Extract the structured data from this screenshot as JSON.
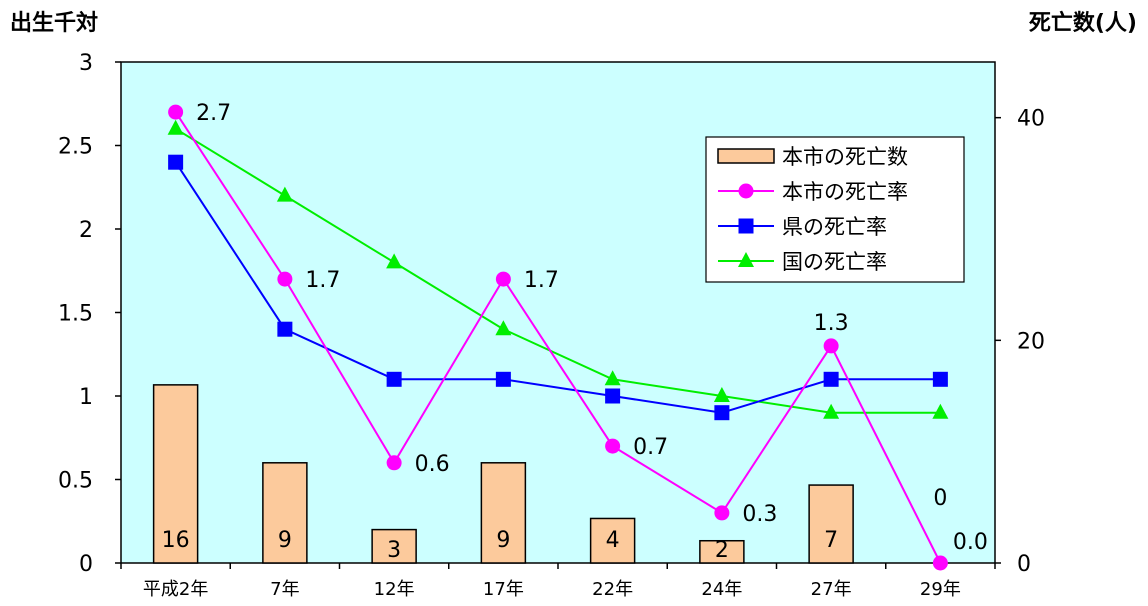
{
  "chart_data": {
    "type": "bar+line",
    "left_axis_title": "出生千対",
    "right_axis_title": "死亡数(人)",
    "categories": [
      "平成2年",
      "7年",
      "12年",
      "17年",
      "22年",
      "24年",
      "27年",
      "29年"
    ],
    "left_axis": {
      "ylim": [
        0,
        3
      ],
      "ticks": [
        "0",
        "0.5",
        "1",
        "1.5",
        "2",
        "2.5",
        "3"
      ]
    },
    "right_axis": {
      "ylim": [
        0,
        45
      ],
      "ticks": [
        "0",
        "20",
        "40"
      ]
    },
    "bars": {
      "name": "本市の死亡数",
      "axis": "right",
      "color": "#FCCA9C",
      "values": [
        16,
        9,
        3,
        9,
        4,
        2,
        7,
        0
      ],
      "labels": [
        "16",
        "9",
        "3",
        "9",
        "4",
        "2",
        "7",
        "0"
      ]
    },
    "series": [
      {
        "name": "本市の死亡率",
        "axis": "left",
        "color": "#FF00FF",
        "marker": "circle",
        "values": [
          2.7,
          1.7,
          0.6,
          1.7,
          0.7,
          0.3,
          1.3,
          0.0
        ],
        "labels": [
          "2.7",
          "1.7",
          "0.6",
          "1.7",
          "0.7",
          "0.3",
          "1.3",
          "0.0"
        ]
      },
      {
        "name": "県の死亡率",
        "axis": "left",
        "color": "#0000FF",
        "marker": "square",
        "values": [
          2.4,
          1.4,
          1.1,
          1.1,
          1.0,
          0.9,
          1.1,
          1.1
        ]
      },
      {
        "name": "国の死亡率",
        "axis": "left",
        "color": "#00EE00",
        "marker": "triangle",
        "values": [
          2.6,
          2.2,
          1.8,
          1.4,
          1.1,
          1.0,
          0.9,
          0.9
        ]
      }
    ],
    "plot_background": "#CCFFFF",
    "grid": false,
    "legend_position": "top-right"
  }
}
